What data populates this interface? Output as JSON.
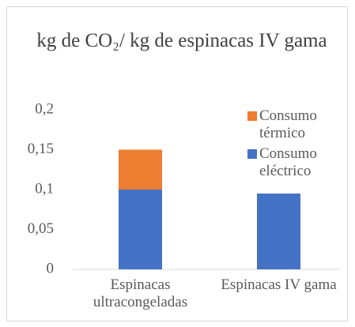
{
  "chart_data": {
    "type": "stacked_bar",
    "title": "kg de CO₂/ kg de espinacas IV gama",
    "categories": [
      "Espinacas ultracongeladas",
      "Espinacas IV gama"
    ],
    "series": [
      {
        "name": "Consumo eléctrico",
        "color": "#4472c4",
        "values": [
          0.1,
          0.095
        ]
      },
      {
        "name": "Consumo térmico",
        "color": "#ed7d31",
        "values": [
          0.05,
          null
        ]
      }
    ],
    "ylim": [
      0,
      0.2
    ],
    "yticks": [
      0,
      {
        "value": 0.05,
        "label": "0,05"
      },
      {
        "value": 0.1,
        "label": "0,1"
      },
      {
        "value": 0.15,
        "label": "0,15"
      },
      {
        "value": 0.2,
        "label": "0,2"
      }
    ],
    "grid": false,
    "legend": "top-right"
  }
}
